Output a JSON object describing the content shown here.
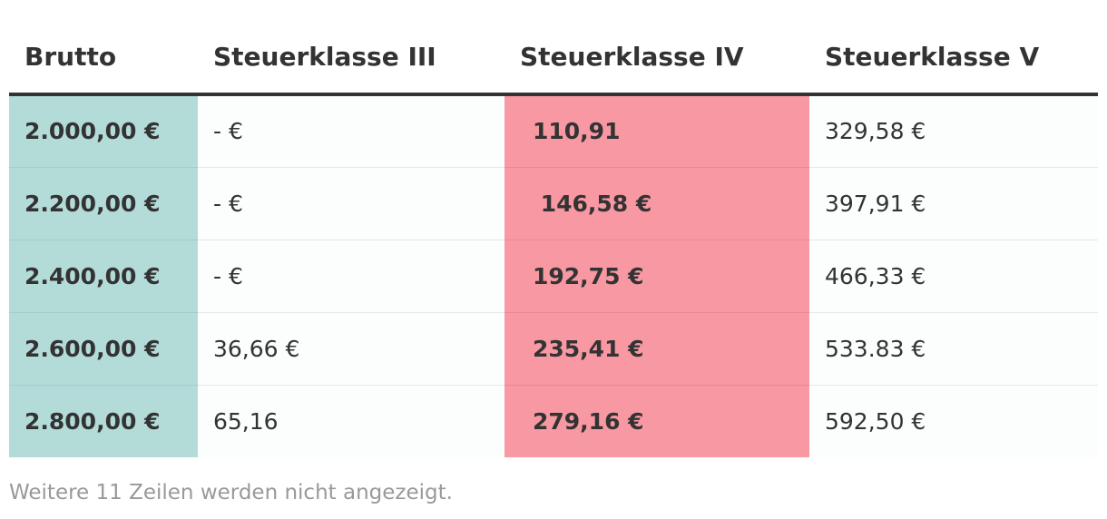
{
  "table": {
    "headers": [
      "Brutto",
      "Steuerklasse III",
      "Steuerklasse IV",
      "Steuerklasse V"
    ],
    "rows": [
      [
        "2.000,00 €",
        "- €",
        "110,91",
        "329,58 €"
      ],
      [
        "2.200,00 €",
        "- €",
        " 146,58 €",
        "397,91 €"
      ],
      [
        "2.400,00 €",
        "- €",
        "192,75 €",
        "466,33 €"
      ],
      [
        "2.600,00 €",
        "36,66 €",
        "235,41 €",
        "533.83 €"
      ],
      [
        "2.800,00 €",
        "65,16",
        "279,16 €",
        "592,50 €"
      ]
    ],
    "highlight_colors": {
      "brutto_column": "#b3dcd9",
      "steuerklasse_iv_column": "#f898a2"
    }
  },
  "footnote": "Weitere 11 Zeilen werden nicht angezeigt."
}
